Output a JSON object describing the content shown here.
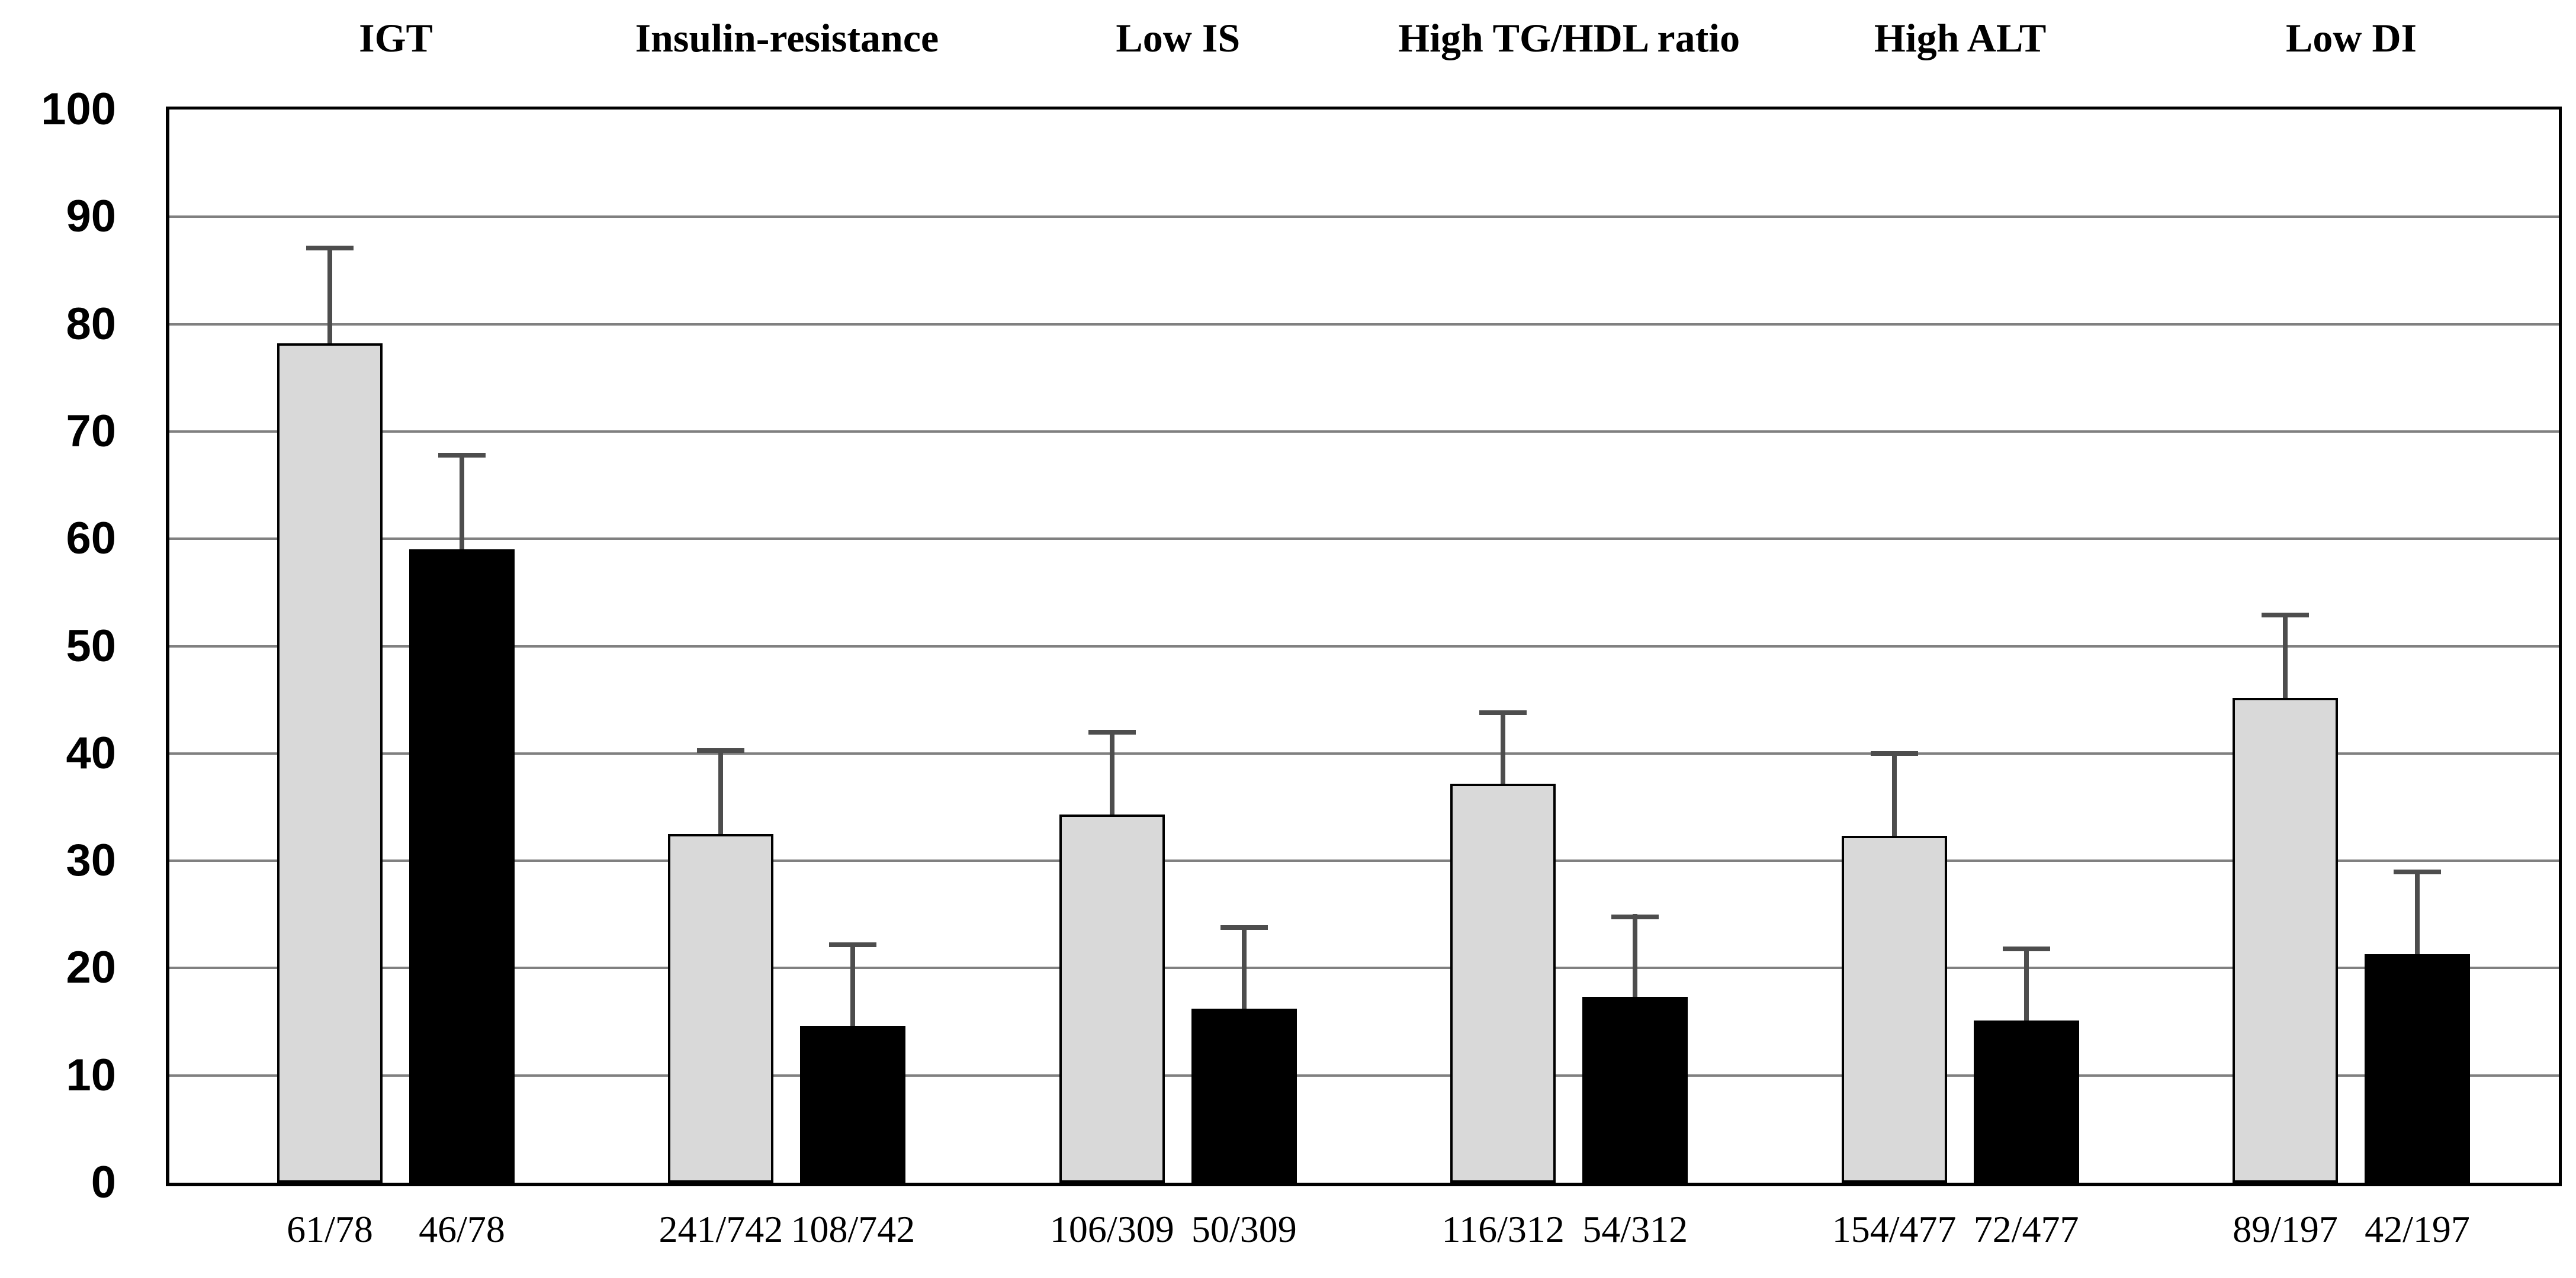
{
  "chart_data": {
    "type": "bar",
    "title": "",
    "categories": [
      "IGT",
      "Insulin-resistance",
      "Low IS",
      "High TG/HDL ratio",
      "High ALT",
      "Low DI"
    ],
    "series": [
      {
        "name": "gray-bars",
        "color": "#d9d9d9",
        "outlined": true,
        "values": [
          78.2,
          32.5,
          34.3,
          37.2,
          32.3,
          45.2
        ],
        "error_upper": [
          87.3,
          40.5,
          42.2,
          44.0,
          40.2,
          53.1
        ],
        "fraction_labels": [
          "61/78",
          "241/742",
          "106/309",
          "116/312",
          "154/477",
          "89/197"
        ]
      },
      {
        "name": "black-bars",
        "color": "#000000",
        "outlined": false,
        "values": [
          59.0,
          14.6,
          16.2,
          17.3,
          15.1,
          21.3
        ],
        "error_upper": [
          68.0,
          22.4,
          24.0,
          25.0,
          22.0,
          29.2
        ],
        "fraction_labels": [
          "46/78",
          "108/742",
          "50/309",
          "54/312",
          "72/477",
          "42/197"
        ]
      }
    ],
    "xlabel": "",
    "ylabel": "",
    "ylim": [
      0,
      100
    ],
    "yticks": [
      0,
      10,
      20,
      30,
      40,
      50,
      60,
      70,
      80,
      90,
      100
    ],
    "grid": true,
    "legend_position": "none",
    "error_bars": "upper-only"
  },
  "colors": {
    "gridline": "#808080",
    "error_bar": "#4d4d4d",
    "plot_border": "#000000",
    "background": "#ffffff",
    "gray_fill": "#d9d9d9",
    "black_fill": "#000000"
  }
}
